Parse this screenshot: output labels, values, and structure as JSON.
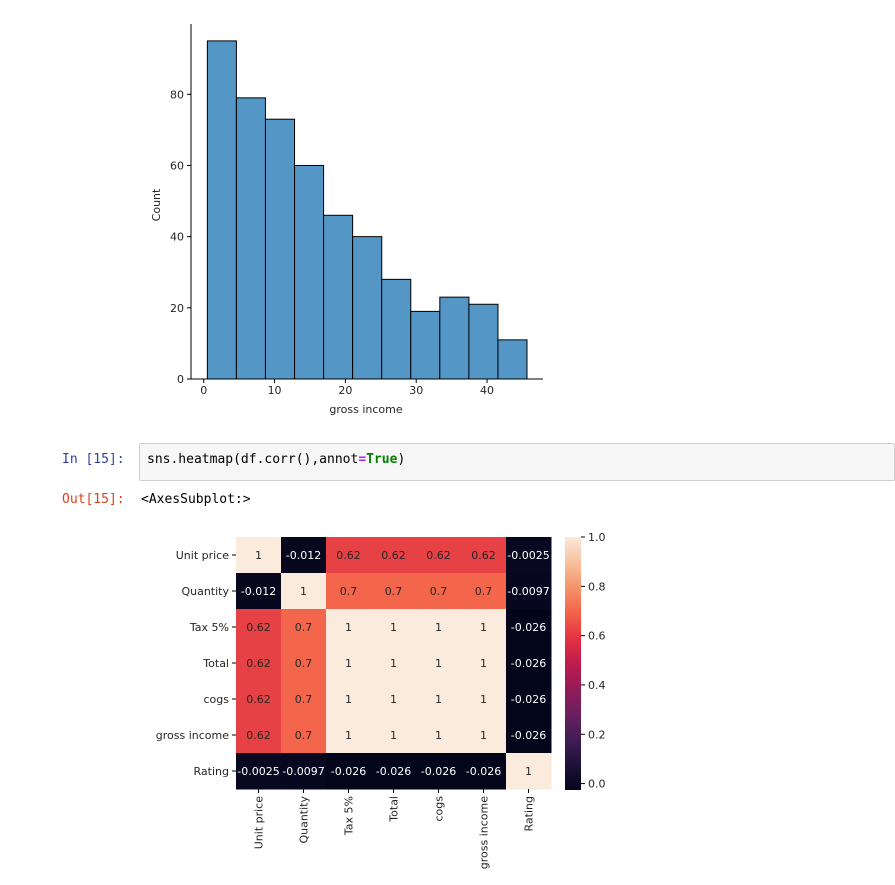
{
  "notebook": {
    "input_prompt": "In [15]:",
    "code": {
      "before": "sns.heatmap(df.corr(),annot",
      "operator": "=",
      "keyword": "True",
      "after": ")"
    },
    "output_prompt": "Out[15]:",
    "output_text": "<AxesSubplot:>"
  },
  "chart_data": [
    {
      "type": "bar",
      "xlabel": "gross income",
      "ylabel": "Count",
      "bin_edges": [
        0.5085,
        4.61,
        8.71,
        12.82,
        16.92,
        21.02,
        25.13,
        29.23,
        33.33,
        37.44,
        41.54,
        45.64
      ],
      "values": [
        95,
        79,
        73,
        60,
        46,
        40,
        28,
        19,
        23,
        21,
        11
      ],
      "xlim": [
        -1.8,
        47.9
      ],
      "ylim": [
        0,
        99.75
      ],
      "x_ticks": [
        0,
        10,
        20,
        30,
        40
      ],
      "y_ticks": [
        0,
        20,
        40,
        60,
        80
      ],
      "bar_color": "#5497c7",
      "edge_color": "#000000",
      "grid": false
    },
    {
      "type": "heatmap",
      "row_labels": [
        "Unit price",
        "Quantity",
        "Tax 5%",
        "Total",
        "cogs",
        "gross income",
        "Rating"
      ],
      "col_labels": [
        "Unit price",
        "Quantity",
        "Tax 5%",
        "Total",
        "cogs",
        "gross income",
        "Rating"
      ],
      "values": [
        [
          1,
          -0.012,
          0.62,
          0.62,
          0.62,
          0.62,
          -0.0025
        ],
        [
          -0.012,
          1,
          0.7,
          0.7,
          0.7,
          0.7,
          -0.0097
        ],
        [
          0.62,
          0.7,
          1,
          1,
          1,
          1,
          -0.026
        ],
        [
          0.62,
          0.7,
          1,
          1,
          1,
          1,
          -0.026
        ],
        [
          0.62,
          0.7,
          1,
          1,
          1,
          1,
          -0.026
        ],
        [
          0.62,
          0.7,
          1,
          1,
          1,
          1,
          -0.026
        ],
        [
          -0.0025,
          -0.0097,
          -0.026,
          -0.026,
          -0.026,
          -0.026,
          1
        ]
      ],
      "annotations": [
        [
          "1",
          "-0.012",
          "0.62",
          "0.62",
          "0.62",
          "0.62",
          "-0.0025"
        ],
        [
          "-0.012",
          "1",
          "0.7",
          "0.7",
          "0.7",
          "0.7",
          "-0.0097"
        ],
        [
          "0.62",
          "0.7",
          "1",
          "1",
          "1",
          "1",
          "-0.026"
        ],
        [
          "0.62",
          "0.7",
          "1",
          "1",
          "1",
          "1",
          "-0.026"
        ],
        [
          "0.62",
          "0.7",
          "1",
          "1",
          "1",
          "1",
          "-0.026"
        ],
        [
          "0.62",
          "0.7",
          "1",
          "1",
          "1",
          "1",
          "-0.026"
        ],
        [
          "-0.0025",
          "-0.0097",
          "-0.026",
          "-0.026",
          "-0.026",
          "-0.026",
          "1"
        ]
      ],
      "vmin": -0.026,
      "vmax": 1,
      "colorbar_ticks": [
        0.0,
        0.2,
        0.4,
        0.6,
        0.8,
        1.0
      ],
      "colorbar_tick_labels": [
        "0.0",
        "0.2",
        "0.4",
        "0.6",
        "0.8",
        "1.0"
      ],
      "colormap": "rocket",
      "colorbar_position": "right"
    }
  ]
}
